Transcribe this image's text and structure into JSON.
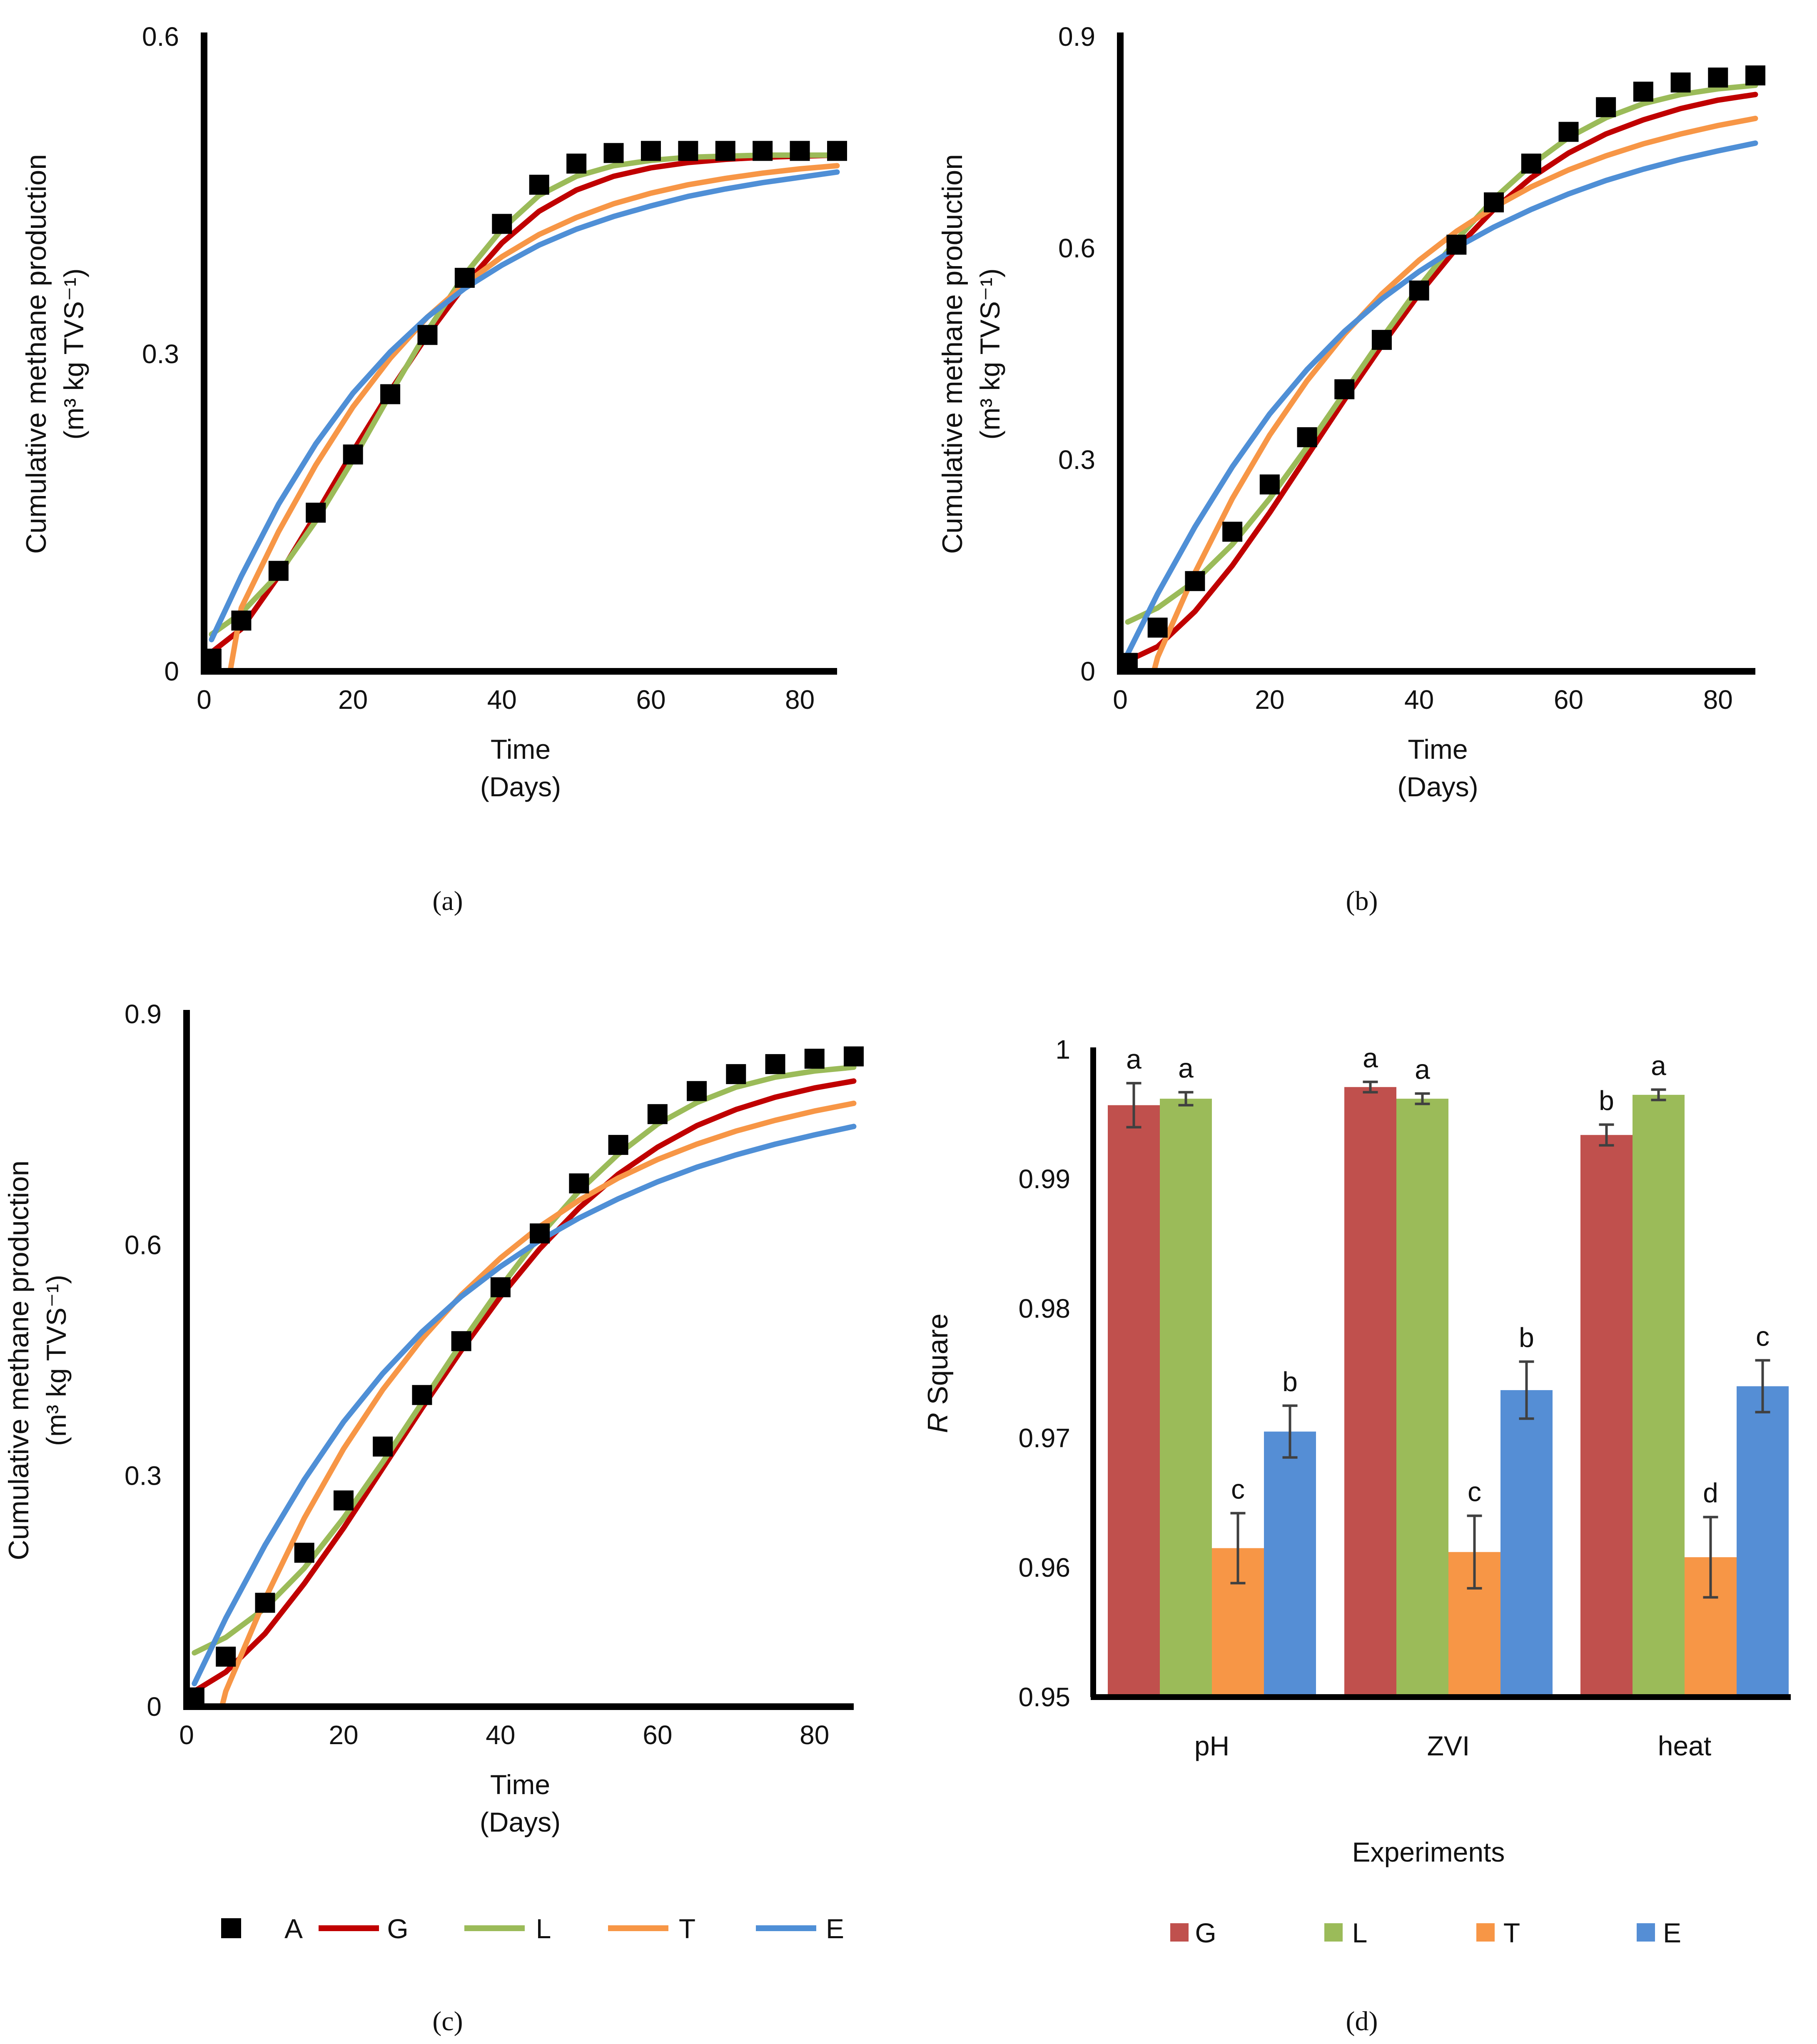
{
  "figure": {
    "panels": [
      "(a)",
      "(b)",
      "(c)",
      "(d)"
    ]
  },
  "colors": {
    "axis": "#000000",
    "A": "#000000",
    "G_line": "#c00000",
    "L_line": "#9bbb59",
    "T_line": "#f79646",
    "E_line": "#4f8fd6",
    "G_bar": "#c0504d",
    "L_bar": "#9bbb59",
    "T_bar": "#f79646",
    "E_bar": "#558ed5",
    "errorbar": "#404040"
  },
  "chart_data": [
    {
      "id": "a",
      "type": "scatter",
      "title": "",
      "xlabel": "Time",
      "xlabel2": "(Days)",
      "ylabel": "Cumulative methane production",
      "ylabel2": "(m³ kg TVS⁻¹)",
      "xlim": [
        0,
        85
      ],
      "ylim": [
        0,
        0.6
      ],
      "xticks": [
        0,
        20,
        40,
        60,
        80
      ],
      "yticks": [
        0,
        0.3,
        0.6
      ],
      "ytick_labels": [
        "0",
        "0.3",
        "0.6"
      ],
      "observed": {
        "name": "A",
        "x": [
          1,
          5,
          10,
          15,
          20,
          25,
          30,
          35,
          40,
          45,
          50,
          55,
          60,
          65,
          70,
          75,
          80,
          85
        ],
        "y": [
          0.012,
          0.048,
          0.095,
          0.15,
          0.205,
          0.262,
          0.318,
          0.372,
          0.423,
          0.46,
          0.48,
          0.49,
          0.492,
          0.492,
          0.492,
          0.492,
          0.492,
          0.492
        ]
      },
      "series": [
        {
          "name": "G",
          "x": [
            1,
            5,
            10,
            15,
            20,
            25,
            30,
            35,
            40,
            45,
            50,
            55,
            60,
            65,
            70,
            75,
            80,
            85
          ],
          "y": [
            0.018,
            0.04,
            0.09,
            0.148,
            0.208,
            0.265,
            0.318,
            0.365,
            0.405,
            0.435,
            0.455,
            0.468,
            0.476,
            0.481,
            0.484,
            0.486,
            0.487,
            0.488
          ]
        },
        {
          "name": "L",
          "x": [
            1,
            5,
            10,
            15,
            20,
            25,
            30,
            35,
            40,
            45,
            50,
            55,
            60,
            65,
            70,
            75,
            80,
            85
          ],
          "y": [
            0.035,
            0.055,
            0.092,
            0.142,
            0.2,
            0.262,
            0.322,
            0.375,
            0.418,
            0.45,
            0.468,
            0.478,
            0.483,
            0.486,
            0.487,
            0.488,
            0.488,
            0.488
          ]
        },
        {
          "name": "T",
          "x": [
            3.5,
            5,
            10,
            15,
            20,
            25,
            30,
            35,
            40,
            45,
            50,
            55,
            60,
            65,
            70,
            75,
            80,
            85
          ],
          "y": [
            0.0,
            0.06,
            0.132,
            0.195,
            0.25,
            0.296,
            0.335,
            0.366,
            0.392,
            0.413,
            0.429,
            0.442,
            0.452,
            0.46,
            0.466,
            0.471,
            0.475,
            0.478
          ]
        },
        {
          "name": "E",
          "x": [
            1,
            5,
            10,
            15,
            20,
            25,
            30,
            35,
            40,
            45,
            50,
            55,
            60,
            65,
            70,
            75,
            80,
            85
          ],
          "y": [
            0.03,
            0.09,
            0.158,
            0.215,
            0.263,
            0.302,
            0.335,
            0.362,
            0.384,
            0.403,
            0.418,
            0.43,
            0.44,
            0.449,
            0.456,
            0.462,
            0.467,
            0.472
          ]
        }
      ]
    },
    {
      "id": "b",
      "type": "scatter",
      "title": "",
      "xlabel": "Time",
      "xlabel2": "(Days)",
      "ylabel": "Cumulative methane production",
      "ylabel2": "(m³ kg TVS⁻¹)",
      "xlim": [
        0,
        85
      ],
      "ylim": [
        0,
        0.9
      ],
      "xticks": [
        0,
        20,
        40,
        60,
        80
      ],
      "yticks": [
        0,
        0.3,
        0.6,
        0.9
      ],
      "ytick_labels": [
        "0",
        "0.3",
        "0.6",
        "0.9"
      ],
      "observed": {
        "name": "A",
        "x": [
          1,
          5,
          10,
          15,
          20,
          25,
          30,
          35,
          40,
          45,
          50,
          55,
          60,
          65,
          70,
          75,
          80,
          85
        ],
        "y": [
          0.012,
          0.062,
          0.128,
          0.198,
          0.265,
          0.332,
          0.4,
          0.47,
          0.54,
          0.605,
          0.665,
          0.72,
          0.765,
          0.8,
          0.822,
          0.835,
          0.842,
          0.845
        ]
      },
      "series": [
        {
          "name": "G",
          "x": [
            1,
            5,
            10,
            15,
            20,
            25,
            30,
            35,
            40,
            45,
            50,
            55,
            60,
            65,
            70,
            75,
            80,
            85
          ],
          "y": [
            0.015,
            0.035,
            0.085,
            0.15,
            0.225,
            0.305,
            0.385,
            0.462,
            0.535,
            0.6,
            0.655,
            0.7,
            0.735,
            0.762,
            0.782,
            0.798,
            0.81,
            0.818
          ]
        },
        {
          "name": "L",
          "x": [
            1,
            5,
            10,
            15,
            20,
            25,
            30,
            35,
            40,
            45,
            50,
            55,
            60,
            65,
            70,
            75,
            80,
            85
          ],
          "y": [
            0.07,
            0.09,
            0.128,
            0.18,
            0.245,
            0.318,
            0.395,
            0.472,
            0.545,
            0.612,
            0.67,
            0.718,
            0.757,
            0.785,
            0.805,
            0.818,
            0.826,
            0.831
          ]
        },
        {
          "name": "T",
          "x": [
            4.5,
            5,
            10,
            15,
            20,
            25,
            30,
            35,
            40,
            45,
            50,
            55,
            60,
            65,
            70,
            75,
            80,
            85
          ],
          "y": [
            0.0,
            0.02,
            0.14,
            0.245,
            0.335,
            0.412,
            0.478,
            0.535,
            0.583,
            0.624,
            0.658,
            0.687,
            0.711,
            0.731,
            0.748,
            0.762,
            0.774,
            0.784
          ]
        },
        {
          "name": "E",
          "x": [
            1,
            5,
            10,
            15,
            20,
            25,
            30,
            35,
            40,
            45,
            50,
            55,
            60,
            65,
            70,
            75,
            80,
            85
          ],
          "y": [
            0.025,
            0.11,
            0.205,
            0.29,
            0.365,
            0.428,
            0.482,
            0.528,
            0.567,
            0.601,
            0.63,
            0.655,
            0.677,
            0.696,
            0.712,
            0.726,
            0.738,
            0.749
          ]
        }
      ]
    },
    {
      "id": "c",
      "type": "scatter",
      "title": "",
      "xlabel": "Time",
      "xlabel2": "(Days)",
      "ylabel": "Cumulative methane production",
      "ylabel2": "(m³ kg TVS⁻¹)",
      "xlim": [
        0,
        85
      ],
      "ylim": [
        0,
        0.9
      ],
      "xticks": [
        0,
        20,
        40,
        60,
        80
      ],
      "yticks": [
        0,
        0.3,
        0.6,
        0.9
      ],
      "ytick_labels": [
        "0",
        "0.3",
        "0.6",
        "0.9"
      ],
      "observed": {
        "name": "A",
        "x": [
          1,
          5,
          10,
          15,
          20,
          25,
          30,
          35,
          40,
          45,
          50,
          55,
          60,
          65,
          70,
          75,
          80,
          85
        ],
        "y": [
          0.012,
          0.065,
          0.135,
          0.2,
          0.268,
          0.338,
          0.405,
          0.475,
          0.545,
          0.615,
          0.68,
          0.73,
          0.77,
          0.8,
          0.822,
          0.835,
          0.842,
          0.845
        ]
      },
      "series": [
        {
          "name": "G",
          "x": [
            1,
            5,
            10,
            15,
            20,
            25,
            30,
            35,
            40,
            45,
            50,
            55,
            60,
            65,
            70,
            75,
            80,
            85
          ],
          "y": [
            0.02,
            0.045,
            0.095,
            0.16,
            0.232,
            0.31,
            0.388,
            0.463,
            0.533,
            0.595,
            0.648,
            0.692,
            0.727,
            0.755,
            0.776,
            0.792,
            0.804,
            0.813
          ]
        },
        {
          "name": "L",
          "x": [
            1,
            5,
            10,
            15,
            20,
            25,
            30,
            35,
            40,
            45,
            50,
            55,
            60,
            65,
            70,
            75,
            80,
            85
          ],
          "y": [
            0.07,
            0.09,
            0.128,
            0.18,
            0.245,
            0.318,
            0.395,
            0.472,
            0.545,
            0.612,
            0.67,
            0.718,
            0.757,
            0.785,
            0.805,
            0.818,
            0.826,
            0.831
          ]
        },
        {
          "name": "T",
          "x": [
            4.5,
            5,
            10,
            15,
            20,
            25,
            30,
            35,
            40,
            45,
            50,
            55,
            60,
            65,
            70,
            75,
            80,
            85
          ],
          "y": [
            0.0,
            0.02,
            0.14,
            0.245,
            0.335,
            0.412,
            0.478,
            0.535,
            0.583,
            0.624,
            0.658,
            0.687,
            0.711,
            0.731,
            0.748,
            0.762,
            0.774,
            0.784
          ]
        },
        {
          "name": "E",
          "x": [
            1,
            5,
            10,
            15,
            20,
            25,
            30,
            35,
            40,
            45,
            50,
            55,
            60,
            65,
            70,
            75,
            80,
            85
          ],
          "y": [
            0.03,
            0.115,
            0.21,
            0.295,
            0.37,
            0.433,
            0.487,
            0.533,
            0.572,
            0.606,
            0.635,
            0.66,
            0.682,
            0.701,
            0.717,
            0.731,
            0.743,
            0.754
          ]
        }
      ],
      "legend": {
        "placement": "bottom",
        "entries": [
          {
            "name": "A",
            "kind": "marker"
          },
          {
            "name": "G",
            "kind": "line"
          },
          {
            "name": "L",
            "kind": "line"
          },
          {
            "name": "T",
            "kind": "line"
          },
          {
            "name": "E",
            "kind": "line"
          }
        ]
      }
    },
    {
      "id": "d",
      "type": "bar",
      "title": "",
      "xlabel": "Experiments",
      "ylabel_italic": "R",
      "ylabel_rest": " Square",
      "ylim": [
        0.95,
        1.0
      ],
      "yticks": [
        0.95,
        0.96,
        0.97,
        0.98,
        0.99,
        1.0
      ],
      "ytick_labels": [
        "0.95",
        "0.96",
        "0.97",
        "0.98",
        "0.99",
        "1"
      ],
      "categories": [
        "pH",
        "ZVI",
        "heat"
      ],
      "series": [
        {
          "name": "G",
          "values": [
            0.9957,
            0.9971,
            0.9934
          ],
          "errors": [
            0.0017,
            0.0004,
            0.0008
          ],
          "letters": [
            "a",
            "a",
            "b"
          ]
        },
        {
          "name": "L",
          "values": [
            0.9962,
            0.9962,
            0.9965
          ],
          "errors": [
            0.0005,
            0.0004,
            0.0004
          ],
          "letters": [
            "a",
            "a",
            "a"
          ]
        },
        {
          "name": "T",
          "values": [
            0.9615,
            0.9612,
            0.9608
          ],
          "errors": [
            0.0027,
            0.0028,
            0.0031
          ],
          "letters": [
            "c",
            "c",
            "d"
          ]
        },
        {
          "name": "E",
          "values": [
            0.9705,
            0.9737,
            0.974
          ],
          "errors": [
            0.002,
            0.0022,
            0.002
          ],
          "letters": [
            "b",
            "b",
            "c"
          ]
        }
      ],
      "legend": {
        "placement": "bottom",
        "entries": [
          "G",
          "L",
          "T",
          "E"
        ]
      }
    }
  ]
}
